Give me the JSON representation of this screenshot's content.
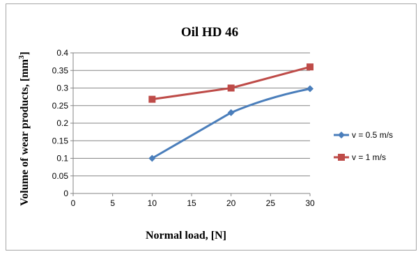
{
  "chart_data": {
    "type": "line",
    "title": "Oil HD 46",
    "xlabel": "Normal load, [N]",
    "ylabel": "Volume of wear products, [mm",
    "ylabel_sup": "3",
    "ylabel_end": "]",
    "xlim": [
      0,
      30
    ],
    "ylim": [
      0,
      0.4
    ],
    "x_ticks": [
      0,
      5,
      10,
      15,
      20,
      25,
      30
    ],
    "y_ticks": [
      "0",
      "0.05",
      "0.1",
      "0.15",
      "0.2",
      "0.25",
      "0.3",
      "0.35",
      "0.4"
    ],
    "y_tick_values": [
      0,
      0.05,
      0.1,
      0.15,
      0.2,
      0.25,
      0.3,
      0.35,
      0.4
    ],
    "grid": true,
    "legend_position": "right",
    "series": [
      {
        "name": "v = 0.5 m/s",
        "x": [
          10,
          20,
          30
        ],
        "values": [
          0.1,
          0.23,
          0.298
        ],
        "color": "#4a7ebb",
        "marker": "diamond"
      },
      {
        "name": "v = 1 m/s",
        "x": [
          10,
          20,
          30
        ],
        "values": [
          0.268,
          0.3,
          0.36
        ],
        "color": "#be4b48",
        "marker": "square"
      }
    ]
  }
}
